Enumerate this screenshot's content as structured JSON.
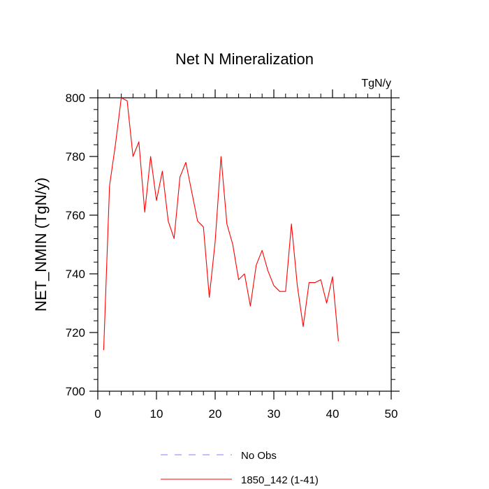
{
  "chart_data": {
    "type": "line",
    "title": "Net N Mineralization",
    "units": "TgN/y",
    "xlabel": "",
    "ylabel": "NET_NMIN  (TgN/y)",
    "xlim": [
      0,
      50
    ],
    "ylim": [
      700,
      800
    ],
    "xticks": [
      0,
      10,
      20,
      30,
      40,
      50
    ],
    "yticks": [
      700,
      720,
      740,
      760,
      780,
      800
    ],
    "grid": false,
    "series": [
      {
        "name": "1850_142 (1-41)",
        "color": "#ff0000",
        "dash": "solid",
        "x": [
          1,
          2,
          3,
          4,
          5,
          6,
          7,
          8,
          9,
          10,
          11,
          12,
          13,
          14,
          15,
          16,
          17,
          18,
          19,
          20,
          21,
          22,
          23,
          24,
          25,
          26,
          27,
          28,
          29,
          30,
          31,
          32,
          33,
          34,
          35,
          36,
          37,
          38,
          39,
          40,
          41
        ],
        "values": [
          714,
          770,
          784,
          800,
          799,
          780,
          785,
          761,
          780,
          765,
          775,
          758,
          752,
          773,
          778,
          768,
          758,
          756,
          732,
          751,
          780,
          757,
          750,
          738,
          740,
          729,
          743,
          748,
          741,
          736,
          734,
          734,
          757,
          736,
          722,
          737,
          737,
          738,
          730,
          739,
          717
        ]
      }
    ],
    "legend": [
      {
        "label": "No Obs",
        "color": "#8080ff",
        "dash": "dashed"
      },
      {
        "label": "1850_142 (1-41)",
        "color": "#ff0000",
        "dash": "solid"
      }
    ],
    "legend_position": "bottom-center"
  }
}
